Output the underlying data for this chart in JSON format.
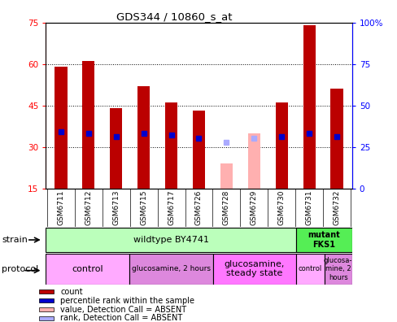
{
  "title": "GDS344 / 10860_s_at",
  "samples": [
    "GSM6711",
    "GSM6712",
    "GSM6713",
    "GSM6715",
    "GSM6717",
    "GSM6726",
    "GSM6728",
    "GSM6729",
    "GSM6730",
    "GSM6731",
    "GSM6732"
  ],
  "count_values": [
    59,
    61,
    44,
    52,
    46,
    43,
    null,
    null,
    46,
    74,
    51
  ],
  "rank_values": [
    34,
    33,
    31,
    33,
    32,
    30,
    null,
    null,
    31,
    33,
    31
  ],
  "absent_count": [
    null,
    null,
    null,
    null,
    null,
    null,
    24,
    35,
    null,
    null,
    null
  ],
  "absent_rank": [
    null,
    null,
    null,
    null,
    null,
    null,
    28,
    30,
    null,
    null,
    null
  ],
  "ylim_left": [
    15,
    75
  ],
  "ylim_right": [
    0,
    100
  ],
  "yticks_left": [
    15,
    30,
    45,
    60,
    75
  ],
  "yticks_right": [
    0,
    25,
    50,
    75,
    100
  ],
  "bar_color": "#bb0000",
  "rank_color": "#0000cc",
  "absent_bar_color": "#ffb0b0",
  "absent_rank_color": "#aaaaff",
  "strain_wildtype": {
    "label": "wildtype BY4741",
    "start": 0,
    "end": 9,
    "color": "#bbffbb"
  },
  "strain_mutant": {
    "label": "mutant\nFKS1",
    "start": 9,
    "end": 11,
    "color": "#55ee55"
  },
  "protocols": [
    {
      "label": "control",
      "start": 0,
      "end": 3,
      "color": "#ffaaff",
      "fontsize": 8
    },
    {
      "label": "glucosamine, 2 hours",
      "start": 3,
      "end": 6,
      "color": "#dd88dd",
      "fontsize": 6.5
    },
    {
      "label": "glucosamine,\nsteady state",
      "start": 6,
      "end": 9,
      "color": "#ff77ff",
      "fontsize": 8
    },
    {
      "label": "control",
      "start": 9,
      "end": 10,
      "color": "#ffaaff",
      "fontsize": 6
    },
    {
      "label": "glucosa-\nmine, 2\nhours",
      "start": 10,
      "end": 11,
      "color": "#dd88dd",
      "fontsize": 6
    }
  ],
  "legend_items": [
    {
      "color": "#bb0000",
      "label": "count"
    },
    {
      "color": "#0000cc",
      "label": "percentile rank within the sample"
    },
    {
      "color": "#ffb0b0",
      "label": "value, Detection Call = ABSENT"
    },
    {
      "color": "#aaaaff",
      "label": "rank, Detection Call = ABSENT"
    }
  ]
}
